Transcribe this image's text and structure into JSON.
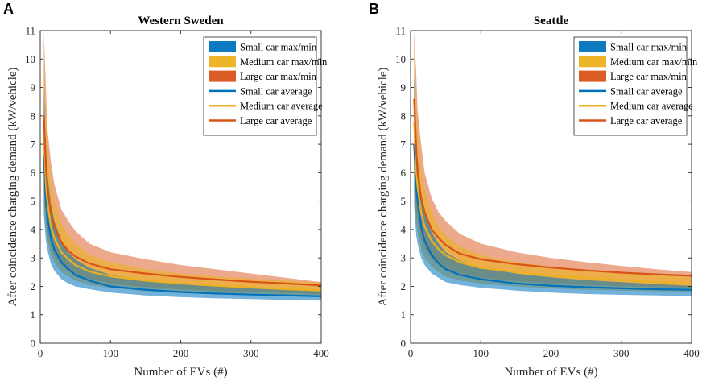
{
  "chart_data": [
    {
      "panel_label": "A",
      "type": "line",
      "title": "Western Sweden",
      "xlabel": "Number of EVs (#)",
      "ylabel": "After coincidence charging demand (kW/vehicle)",
      "xlim": [
        0,
        400
      ],
      "ylim": [
        0,
        11
      ],
      "xticks": [
        0,
        100,
        200,
        300,
        400
      ],
      "yticks": [
        0,
        1,
        2,
        3,
        4,
        5,
        6,
        7,
        8,
        9,
        10,
        11
      ],
      "legend_position": "top-right",
      "legend": [
        "Small car max/min",
        "Medium car max/min",
        "Large car max/min",
        "Small car average",
        "Medium car average",
        "Large car average"
      ],
      "x": [
        5,
        8,
        10,
        15,
        20,
        30,
        40,
        50,
        70,
        100,
        150,
        200,
        250,
        300,
        350,
        400
      ],
      "series": [
        {
          "name": "Small car average",
          "kind": "line",
          "color": "#0072BD",
          "values": [
            6.6,
            5.0,
            4.5,
            3.7,
            3.3,
            2.85,
            2.6,
            2.4,
            2.2,
            2.0,
            1.88,
            1.8,
            1.75,
            1.71,
            1.68,
            1.65
          ]
        },
        {
          "name": "Medium car average",
          "kind": "line",
          "color": "#EDB120",
          "values": [
            7.3,
            5.6,
            5.0,
            4.1,
            3.7,
            3.2,
            2.95,
            2.75,
            2.52,
            2.35,
            2.2,
            2.1,
            2.02,
            1.96,
            1.9,
            1.85
          ]
        },
        {
          "name": "Large car average",
          "kind": "line",
          "color": "#D95319",
          "values": [
            8.0,
            6.2,
            5.5,
            4.6,
            4.1,
            3.55,
            3.25,
            3.05,
            2.8,
            2.6,
            2.45,
            2.33,
            2.24,
            2.16,
            2.1,
            2.03
          ]
        },
        {
          "name": "Small car max/min",
          "kind": "band",
          "color": "#0072BD",
          "upper": [
            9.0,
            7.0,
            6.0,
            4.9,
            4.3,
            3.6,
            3.2,
            2.95,
            2.65,
            2.4,
            2.2,
            2.1,
            2.0,
            1.95,
            1.9,
            1.85
          ],
          "lower": [
            4.5,
            3.6,
            3.3,
            2.8,
            2.55,
            2.25,
            2.1,
            2.0,
            1.9,
            1.78,
            1.68,
            1.62,
            1.58,
            1.55,
            1.52,
            1.5
          ]
        },
        {
          "name": "Medium car max/min",
          "kind": "band",
          "color": "#EDB120",
          "upper": [
            10.0,
            8.0,
            7.0,
            5.7,
            5.0,
            4.2,
            3.8,
            3.5,
            3.1,
            2.85,
            2.6,
            2.45,
            2.35,
            2.27,
            2.2,
            2.12
          ],
          "lower": [
            5.0,
            4.0,
            3.7,
            3.1,
            2.85,
            2.5,
            2.35,
            2.2,
            2.05,
            1.95,
            1.83,
            1.76,
            1.71,
            1.68,
            1.65,
            1.62
          ]
        },
        {
          "name": "Large car max/min",
          "kind": "band",
          "color": "#D95319",
          "upper": [
            11.0,
            9.0,
            7.6,
            6.4,
            5.6,
            4.7,
            4.3,
            3.95,
            3.5,
            3.2,
            2.95,
            2.75,
            2.6,
            2.45,
            2.3,
            2.15
          ],
          "lower": [
            5.5,
            4.4,
            4.0,
            3.4,
            3.1,
            2.75,
            2.55,
            2.4,
            2.25,
            2.1,
            1.98,
            1.9,
            1.84,
            1.8,
            1.76,
            1.72
          ]
        }
      ]
    },
    {
      "panel_label": "B",
      "type": "line",
      "title": "Seattle",
      "xlabel": "Number of EVs (#)",
      "ylabel": "After coincidence charging demand (kW/vehicle)",
      "xlim": [
        0,
        400
      ],
      "ylim": [
        0,
        11
      ],
      "xticks": [
        0,
        100,
        200,
        300,
        400
      ],
      "yticks": [
        0,
        1,
        2,
        3,
        4,
        5,
        6,
        7,
        8,
        9,
        10,
        11
      ],
      "legend_position": "top-right",
      "legend": [
        "Small car max/min",
        "Medium car max/min",
        "Large car max/min",
        "Small car average",
        "Medium car average",
        "Large car average"
      ],
      "x": [
        5,
        8,
        10,
        15,
        20,
        30,
        40,
        50,
        70,
        100,
        150,
        200,
        250,
        300,
        350,
        400
      ],
      "series": [
        {
          "name": "Small car average",
          "kind": "line",
          "color": "#0072BD",
          "values": [
            7.0,
            5.5,
            5.0,
            4.1,
            3.6,
            3.1,
            2.8,
            2.6,
            2.4,
            2.25,
            2.1,
            2.02,
            1.97,
            1.93,
            1.9,
            1.88
          ]
        },
        {
          "name": "Medium car average",
          "kind": "line",
          "color": "#EDB120",
          "values": [
            7.8,
            6.1,
            5.5,
            4.6,
            4.1,
            3.6,
            3.3,
            3.1,
            2.85,
            2.65,
            2.5,
            2.38,
            2.3,
            2.22,
            2.15,
            2.1
          ]
        },
        {
          "name": "Large car average",
          "kind": "line",
          "color": "#D95319",
          "values": [
            8.6,
            6.8,
            6.0,
            5.1,
            4.6,
            4.0,
            3.7,
            3.45,
            3.15,
            2.95,
            2.78,
            2.66,
            2.56,
            2.48,
            2.42,
            2.37
          ]
        },
        {
          "name": "Small car max/min",
          "kind": "band",
          "color": "#0072BD",
          "upper": [
            9.5,
            7.5,
            6.5,
            5.3,
            4.6,
            3.9,
            3.5,
            3.2,
            2.9,
            2.65,
            2.45,
            2.32,
            2.22,
            2.15,
            2.08,
            2.02
          ],
          "lower": [
            4.8,
            3.8,
            3.5,
            3.0,
            2.75,
            2.45,
            2.3,
            2.15,
            2.05,
            1.95,
            1.85,
            1.78,
            1.73,
            1.7,
            1.68,
            1.65
          ]
        },
        {
          "name": "Medium car max/min",
          "kind": "band",
          "color": "#EDB120",
          "upper": [
            10.5,
            8.5,
            7.5,
            6.1,
            5.4,
            4.6,
            4.1,
            3.8,
            3.4,
            3.1,
            2.85,
            2.7,
            2.58,
            2.48,
            2.4,
            2.33
          ],
          "lower": [
            5.3,
            4.2,
            3.9,
            3.3,
            3.0,
            2.7,
            2.5,
            2.35,
            2.2,
            2.1,
            2.0,
            1.93,
            1.88,
            1.85,
            1.83,
            1.81
          ]
        },
        {
          "name": "Large car max/min",
          "kind": "band",
          "color": "#D95319",
          "upper": [
            11.0,
            9.5,
            8.2,
            7.0,
            6.0,
            5.1,
            4.6,
            4.3,
            3.85,
            3.5,
            3.2,
            3.0,
            2.85,
            2.72,
            2.6,
            2.5
          ],
          "lower": [
            5.8,
            4.7,
            4.3,
            3.7,
            3.35,
            2.95,
            2.75,
            2.6,
            2.45,
            2.3,
            2.18,
            2.1,
            2.05,
            2.0,
            1.97,
            1.94
          ]
        }
      ]
    }
  ]
}
